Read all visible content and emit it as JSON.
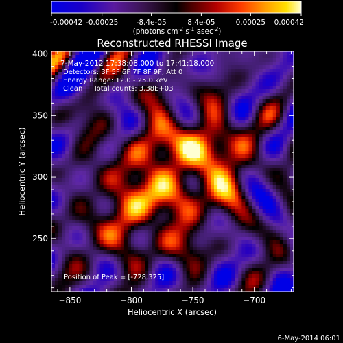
{
  "chart_data": {
    "type": "heatmap",
    "title": "Reconstructed RHESSI Image",
    "xlabel": "Heliocentric X (arcsec)",
    "ylabel": "Heliocentric Y (arcsec)",
    "xlim": [
      -865,
      -668
    ],
    "ylim": [
      207,
      402
    ],
    "xticks": [
      -850,
      -800,
      -750,
      -700
    ],
    "yticks": [
      250,
      300,
      350,
      400
    ],
    "colorbar": {
      "min": -0.00042,
      "max": 0.00042,
      "ticks": [
        "-0.00042",
        "-0.00025",
        "-8.4e-05",
        "8.4e-05",
        "0.00025",
        "0.00042"
      ],
      "unit_main": "(photons cm",
      "unit_sup1": "-2",
      "unit_mid": " s",
      "unit_sup2": "-1",
      "unit_end": " asec",
      "unit_sup3": "-2",
      "unit_close": ")"
    },
    "peak": [
      -728,
      325
    ],
    "annotations": [
      "7-May-2012 17:38:08.000 to 17:41:18.000",
      "Detectors: 3F 5F 6F 7F 8F 9F, Att 0",
      "Energy Range: 12.0 - 25.0 keV",
      "Clean     Total counts: 3.38E+03"
    ],
    "peak_label": "Position of Peak = [-728,325]",
    "grid": false
  },
  "footer": {
    "timestamp": "6-May-2014 06:01"
  },
  "colors": {
    "background": "#000000",
    "text": "#ffffff"
  }
}
